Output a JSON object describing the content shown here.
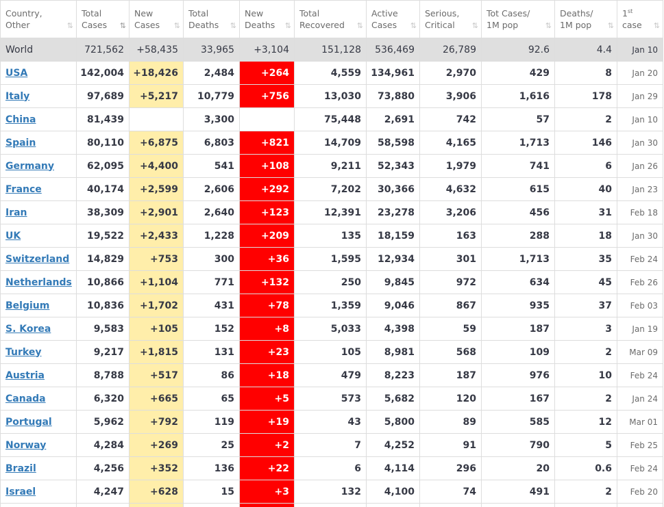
{
  "columns": [
    {
      "l1": "Country,",
      "l2": "Other",
      "sort": "⇅"
    },
    {
      "l1": "Total",
      "l2": "Cases",
      "sort": "⇅"
    },
    {
      "l1": "New",
      "l2": "Cases",
      "sort": "⇅"
    },
    {
      "l1": "Total",
      "l2": "Deaths",
      "sort": "⇅"
    },
    {
      "l1": "New",
      "l2": "Deaths",
      "sort": "⇅"
    },
    {
      "l1": "Total",
      "l2": "Recovered",
      "sort": "⇅"
    },
    {
      "l1": "Active",
      "l2": "Cases",
      "sort": "⇅"
    },
    {
      "l1": "Serious,",
      "l2": "Critical",
      "sort": "⇅"
    },
    {
      "l1": "Tot Cases/",
      "l2": "1M pop",
      "sort": "⇅"
    },
    {
      "l1": "Deaths/",
      "l2": "1M pop",
      "sort": "⇅"
    },
    {
      "l1": "1",
      "sup": "st",
      "l2": "case",
      "sort": "⇅"
    }
  ],
  "world": {
    "country": "World",
    "total_cases": "721,562",
    "new_cases": "+58,435",
    "total_deaths": "33,965",
    "new_deaths": "+3,104",
    "total_recovered": "151,128",
    "active_cases": "536,469",
    "serious": "26,789",
    "cases_per_1m": "92.6",
    "deaths_per_1m": "4.4",
    "first_case": "Jan 10"
  },
  "rows": [
    {
      "country": "USA",
      "total_cases": "142,004",
      "new_cases": "+18,426",
      "total_deaths": "2,484",
      "new_deaths": "+264",
      "total_recovered": "4,559",
      "active_cases": "134,961",
      "serious": "2,970",
      "cases_per_1m": "429",
      "deaths_per_1m": "8",
      "first_case": "Jan 20"
    },
    {
      "country": "Italy",
      "total_cases": "97,689",
      "new_cases": "+5,217",
      "total_deaths": "10,779",
      "new_deaths": "+756",
      "total_recovered": "13,030",
      "active_cases": "73,880",
      "serious": "3,906",
      "cases_per_1m": "1,616",
      "deaths_per_1m": "178",
      "first_case": "Jan 29"
    },
    {
      "country": "China",
      "total_cases": "81,439",
      "new_cases": "",
      "total_deaths": "3,300",
      "new_deaths": "",
      "total_recovered": "75,448",
      "active_cases": "2,691",
      "serious": "742",
      "cases_per_1m": "57",
      "deaths_per_1m": "2",
      "first_case": "Jan 10"
    },
    {
      "country": "Spain",
      "total_cases": "80,110",
      "new_cases": "+6,875",
      "total_deaths": "6,803",
      "new_deaths": "+821",
      "total_recovered": "14,709",
      "active_cases": "58,598",
      "serious": "4,165",
      "cases_per_1m": "1,713",
      "deaths_per_1m": "146",
      "first_case": "Jan 30"
    },
    {
      "country": "Germany",
      "total_cases": "62,095",
      "new_cases": "+4,400",
      "total_deaths": "541",
      "new_deaths": "+108",
      "total_recovered": "9,211",
      "active_cases": "52,343",
      "serious": "1,979",
      "cases_per_1m": "741",
      "deaths_per_1m": "6",
      "first_case": "Jan 26"
    },
    {
      "country": "France",
      "total_cases": "40,174",
      "new_cases": "+2,599",
      "total_deaths": "2,606",
      "new_deaths": "+292",
      "total_recovered": "7,202",
      "active_cases": "30,366",
      "serious": "4,632",
      "cases_per_1m": "615",
      "deaths_per_1m": "40",
      "first_case": "Jan 23"
    },
    {
      "country": "Iran",
      "total_cases": "38,309",
      "new_cases": "+2,901",
      "total_deaths": "2,640",
      "new_deaths": "+123",
      "total_recovered": "12,391",
      "active_cases": "23,278",
      "serious": "3,206",
      "cases_per_1m": "456",
      "deaths_per_1m": "31",
      "first_case": "Feb 18"
    },
    {
      "country": "UK",
      "total_cases": "19,522",
      "new_cases": "+2,433",
      "total_deaths": "1,228",
      "new_deaths": "+209",
      "total_recovered": "135",
      "active_cases": "18,159",
      "serious": "163",
      "cases_per_1m": "288",
      "deaths_per_1m": "18",
      "first_case": "Jan 30"
    },
    {
      "country": "Switzerland",
      "total_cases": "14,829",
      "new_cases": "+753",
      "total_deaths": "300",
      "new_deaths": "+36",
      "total_recovered": "1,595",
      "active_cases": "12,934",
      "serious": "301",
      "cases_per_1m": "1,713",
      "deaths_per_1m": "35",
      "first_case": "Feb 24"
    },
    {
      "country": "Netherlands",
      "total_cases": "10,866",
      "new_cases": "+1,104",
      "total_deaths": "771",
      "new_deaths": "+132",
      "total_recovered": "250",
      "active_cases": "9,845",
      "serious": "972",
      "cases_per_1m": "634",
      "deaths_per_1m": "45",
      "first_case": "Feb 26"
    },
    {
      "country": "Belgium",
      "total_cases": "10,836",
      "new_cases": "+1,702",
      "total_deaths": "431",
      "new_deaths": "+78",
      "total_recovered": "1,359",
      "active_cases": "9,046",
      "serious": "867",
      "cases_per_1m": "935",
      "deaths_per_1m": "37",
      "first_case": "Feb 03"
    },
    {
      "country": "S. Korea",
      "total_cases": "9,583",
      "new_cases": "+105",
      "total_deaths": "152",
      "new_deaths": "+8",
      "total_recovered": "5,033",
      "active_cases": "4,398",
      "serious": "59",
      "cases_per_1m": "187",
      "deaths_per_1m": "3",
      "first_case": "Jan 19"
    },
    {
      "country": "Turkey",
      "total_cases": "9,217",
      "new_cases": "+1,815",
      "total_deaths": "131",
      "new_deaths": "+23",
      "total_recovered": "105",
      "active_cases": "8,981",
      "serious": "568",
      "cases_per_1m": "109",
      "deaths_per_1m": "2",
      "first_case": "Mar 09"
    },
    {
      "country": "Austria",
      "total_cases": "8,788",
      "new_cases": "+517",
      "total_deaths": "86",
      "new_deaths": "+18",
      "total_recovered": "479",
      "active_cases": "8,223",
      "serious": "187",
      "cases_per_1m": "976",
      "deaths_per_1m": "10",
      "first_case": "Feb 24"
    },
    {
      "country": "Canada",
      "total_cases": "6,320",
      "new_cases": "+665",
      "total_deaths": "65",
      "new_deaths": "+5",
      "total_recovered": "573",
      "active_cases": "5,682",
      "serious": "120",
      "cases_per_1m": "167",
      "deaths_per_1m": "2",
      "first_case": "Jan 24"
    },
    {
      "country": "Portugal",
      "total_cases": "5,962",
      "new_cases": "+792",
      "total_deaths": "119",
      "new_deaths": "+19",
      "total_recovered": "43",
      "active_cases": "5,800",
      "serious": "89",
      "cases_per_1m": "585",
      "deaths_per_1m": "12",
      "first_case": "Mar 01"
    },
    {
      "country": "Norway",
      "total_cases": "4,284",
      "new_cases": "+269",
      "total_deaths": "25",
      "new_deaths": "+2",
      "total_recovered": "7",
      "active_cases": "4,252",
      "serious": "91",
      "cases_per_1m": "790",
      "deaths_per_1m": "5",
      "first_case": "Feb 25"
    },
    {
      "country": "Brazil",
      "total_cases": "4,256",
      "new_cases": "+352",
      "total_deaths": "136",
      "new_deaths": "+22",
      "total_recovered": "6",
      "active_cases": "4,114",
      "serious": "296",
      "cases_per_1m": "20",
      "deaths_per_1m": "0.6",
      "first_case": "Feb 24"
    },
    {
      "country": "Israel",
      "total_cases": "4,247",
      "new_cases": "+628",
      "total_deaths": "15",
      "new_deaths": "+3",
      "total_recovered": "132",
      "active_cases": "4,100",
      "serious": "74",
      "cases_per_1m": "491",
      "deaths_per_1m": "2",
      "first_case": "Feb 20"
    },
    {
      "country": "",
      "total_cases": "",
      "new_cases": "",
      "total_deaths": "",
      "new_deaths": "",
      "total_recovered": "",
      "active_cases": "",
      "serious": "",
      "cases_per_1m": "",
      "deaths_per_1m": "",
      "first_case": ""
    }
  ],
  "colors": {
    "new_cases_bg": "#ffeeaa",
    "new_deaths_bg": "#ff0000",
    "world_row_bg": "#dfdfdf",
    "link": "#337ab7"
  }
}
